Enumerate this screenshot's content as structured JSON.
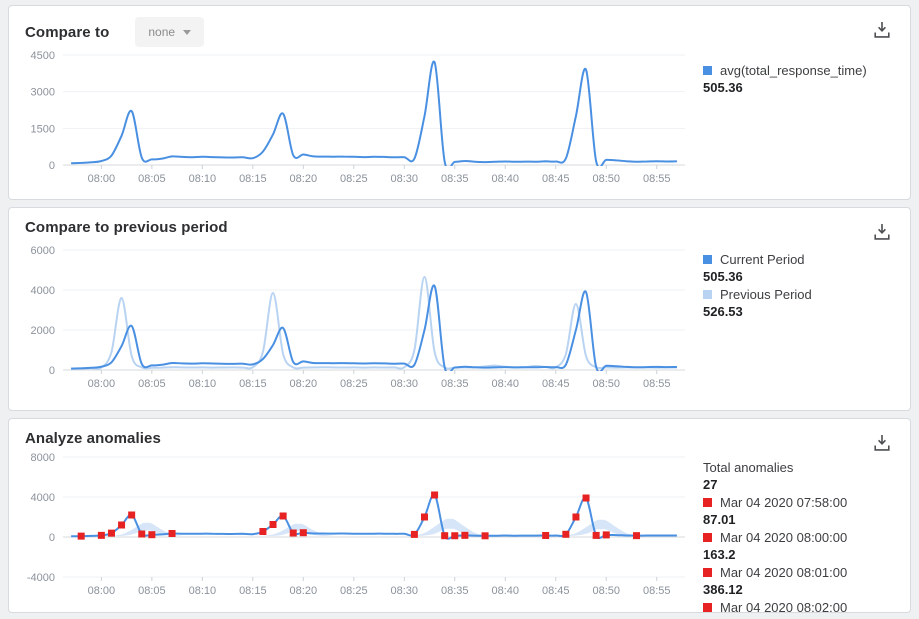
{
  "panels": [
    {
      "title": "Compare to",
      "dropdown": {
        "label": "none"
      },
      "legend": [
        {
          "swatch": "#4a90e2",
          "label": "avg(total_response_time)",
          "value": "505.36"
        }
      ]
    },
    {
      "title": "Compare to previous period",
      "legend": [
        {
          "swatch": "#4a90e2",
          "label": "Current Period",
          "value": "505.36"
        },
        {
          "swatch": "#b9d3f2",
          "label": "Previous Period",
          "value": "526.53"
        }
      ]
    },
    {
      "title": "Analyze anomalies",
      "legend": [
        {
          "swatch": null,
          "label": "Total anomalies",
          "value": "27"
        },
        {
          "swatch": "#e62222",
          "label": "Mar 04 2020 07:58:00",
          "value": "87.01"
        },
        {
          "swatch": "#e62222",
          "label": "Mar 04 2020 08:00:00",
          "value": "163.2"
        },
        {
          "swatch": "#e62222",
          "label": "Mar 04 2020 08:01:00",
          "value": "386.12"
        },
        {
          "swatch": "#e62222",
          "label": "Mar 04 2020 08:02:00",
          "value": null
        }
      ]
    }
  ],
  "chart_data": [
    {
      "type": "line",
      "title": "Compare to",
      "x_start_time": "07:57",
      "x_start_minute": -3,
      "x_step_minutes": 1,
      "xlim": [
        -3.8,
        57.8
      ],
      "ylim": [
        0,
        4500
      ],
      "yticks": [
        0,
        1500,
        3000,
        4500
      ],
      "x_tick_minutes": [
        0,
        5,
        10,
        15,
        20,
        25,
        30,
        35,
        40,
        45,
        50,
        55
      ],
      "x_tick_labels": [
        "08:00",
        "08:05",
        "08:10",
        "08:15",
        "08:20",
        "08:25",
        "08:30",
        "08:35",
        "08:40",
        "08:45",
        "08:50",
        "08:55"
      ],
      "series": [
        {
          "name": "avg(total_response_time)",
          "color": "#4a90e2",
          "values": [
            70,
            87,
            110,
            163,
            386,
            1200,
            2200,
            300,
            230,
            260,
            350,
            330,
            320,
            335,
            325,
            310,
            305,
            315,
            280,
            550,
            1250,
            2100,
            400,
            430,
            350,
            345,
            340,
            345,
            335,
            325,
            335,
            330,
            315,
            320,
            260,
            2000,
            4200,
            130,
            125,
            165,
            135,
            120,
            130,
            145,
            130,
            140,
            135,
            150,
            145,
            270,
            2000,
            3900,
            160,
            210,
            190,
            155,
            135,
            145,
            155,
            145,
            150
          ]
        }
      ]
    },
    {
      "type": "line",
      "title": "Compare to previous period",
      "x_start_time": "07:57",
      "x_start_minute": -3,
      "x_step_minutes": 1,
      "xlim": [
        -3.8,
        57.8
      ],
      "ylim": [
        0,
        6000
      ],
      "yticks": [
        0,
        2000,
        4000,
        6000
      ],
      "x_tick_minutes": [
        0,
        5,
        10,
        15,
        20,
        25,
        30,
        35,
        40,
        45,
        50,
        55
      ],
      "x_tick_labels": [
        "08:00",
        "08:05",
        "08:10",
        "08:15",
        "08:20",
        "08:25",
        "08:30",
        "08:35",
        "08:40",
        "08:45",
        "08:50",
        "08:55"
      ],
      "series": [
        {
          "name": "Current Period",
          "color": "#4a90e2",
          "values": [
            70,
            87,
            110,
            163,
            386,
            1200,
            2200,
            300,
            230,
            260,
            350,
            330,
            320,
            335,
            325,
            310,
            305,
            315,
            280,
            550,
            1250,
            2100,
            400,
            430,
            350,
            345,
            340,
            345,
            335,
            325,
            335,
            330,
            315,
            320,
            260,
            2000,
            4200,
            130,
            125,
            165,
            135,
            120,
            130,
            145,
            130,
            140,
            135,
            150,
            145,
            270,
            2000,
            3900,
            160,
            210,
            190,
            155,
            135,
            145,
            155,
            145,
            150
          ]
        },
        {
          "name": "Previous Period",
          "color": "#b9d3f2",
          "values": [
            60,
            70,
            90,
            120,
            900,
            3600,
            700,
            130,
            110,
            120,
            140,
            130,
            125,
            130,
            120,
            125,
            130,
            120,
            140,
            900,
            3850,
            800,
            130,
            120,
            130,
            140,
            130,
            125,
            130,
            120,
            130,
            125,
            130,
            140,
            1000,
            4650,
            900,
            130,
            120,
            130,
            125,
            180,
            220,
            160,
            130,
            140,
            200,
            150,
            130,
            800,
            3300,
            700,
            140,
            130,
            120,
            130,
            125,
            130,
            120,
            130,
            125
          ]
        }
      ]
    },
    {
      "type": "line",
      "title": "Analyze anomalies",
      "x_start_time": "07:57",
      "x_start_minute": -3,
      "x_step_minutes": 1,
      "xlim": [
        -3.8,
        57.8
      ],
      "ylim": [
        -4000,
        8000
      ],
      "yticks": [
        -4000,
        0,
        4000,
        8000
      ],
      "x_tick_minutes": [
        0,
        5,
        10,
        15,
        20,
        25,
        30,
        35,
        40,
        45,
        50,
        55
      ],
      "x_tick_labels": [
        "08:00",
        "08:05",
        "08:10",
        "08:15",
        "08:20",
        "08:25",
        "08:30",
        "08:35",
        "08:40",
        "08:45",
        "08:50",
        "08:55"
      ],
      "band_color": "#c9dcf5",
      "series": [
        {
          "name": "avg(total_response_time)",
          "color": "#4a90e2",
          "values": [
            70,
            87,
            110,
            163,
            386,
            1200,
            2200,
            300,
            230,
            260,
            350,
            330,
            320,
            335,
            325,
            310,
            305,
            315,
            280,
            550,
            1250,
            2100,
            400,
            430,
            350,
            345,
            340,
            345,
            335,
            325,
            335,
            330,
            315,
            320,
            260,
            2000,
            4200,
            130,
            125,
            165,
            135,
            120,
            130,
            145,
            130,
            140,
            135,
            150,
            145,
            270,
            2000,
            3900,
            160,
            210,
            190,
            155,
            135,
            145,
            155,
            145,
            150
          ]
        }
      ],
      "confidence_bands": [
        {
          "x": [
            1,
            2,
            3,
            4,
            4.5,
            5,
            6,
            7,
            8
          ],
          "upper": [
            115,
            260,
            720,
            1340,
            1420,
            1340,
            720,
            260,
            115
          ],
          "lower": [
            100,
            115,
            250,
            600,
            640,
            600,
            250,
            115,
            100
          ]
        },
        {
          "x": [
            16,
            17,
            18,
            19,
            19.5,
            20,
            21,
            22,
            23
          ],
          "upper": [
            115,
            245,
            675,
            1250,
            1320,
            1250,
            675,
            245,
            115
          ],
          "lower": [
            100,
            112,
            235,
            560,
            595,
            560,
            235,
            112,
            100
          ]
        },
        {
          "x": [
            30,
            31,
            32,
            33,
            34,
            34.5,
            35,
            36,
            37,
            38
          ],
          "upper": [
            105,
            160,
            410,
            1040,
            1730,
            1820,
            1730,
            1040,
            410,
            160
          ],
          "lower": [
            100,
            104,
            150,
            330,
            780,
            820,
            780,
            330,
            150,
            104
          ]
        },
        {
          "x": [
            45,
            46,
            47,
            48,
            49,
            49.5,
            50,
            51,
            52,
            53
          ],
          "upper": [
            105,
            155,
            390,
            985,
            1640,
            1720,
            1640,
            985,
            390,
            155
          ],
          "lower": [
            100,
            104,
            145,
            315,
            740,
            775,
            740,
            315,
            145,
            104
          ]
        }
      ],
      "anomalies": {
        "total": 27,
        "color": "#e62222",
        "points": [
          [
            -2,
            87.01
          ],
          [
            0,
            163.2
          ],
          [
            1,
            386.12
          ],
          [
            2,
            1200
          ],
          [
            3,
            2200
          ],
          [
            4,
            300
          ],
          [
            5,
            230
          ],
          [
            7,
            350
          ],
          [
            16,
            550
          ],
          [
            17,
            1250
          ],
          [
            18,
            2100
          ],
          [
            19,
            400
          ],
          [
            20,
            430
          ],
          [
            31,
            260
          ],
          [
            32,
            2000
          ],
          [
            33,
            4200
          ],
          [
            34,
            130
          ],
          [
            35,
            125
          ],
          [
            36,
            165
          ],
          [
            38,
            120
          ],
          [
            44,
            150
          ],
          [
            46,
            270
          ],
          [
            47,
            2000
          ],
          [
            48,
            3900
          ],
          [
            49,
            160
          ],
          [
            50,
            210
          ],
          [
            53,
            135
          ]
        ]
      }
    }
  ],
  "colors": {
    "current_line": "#4a90e2",
    "previous_line": "#b9d3f2",
    "anomaly_red": "#e62222",
    "band_fill": "#c9dcf5"
  }
}
